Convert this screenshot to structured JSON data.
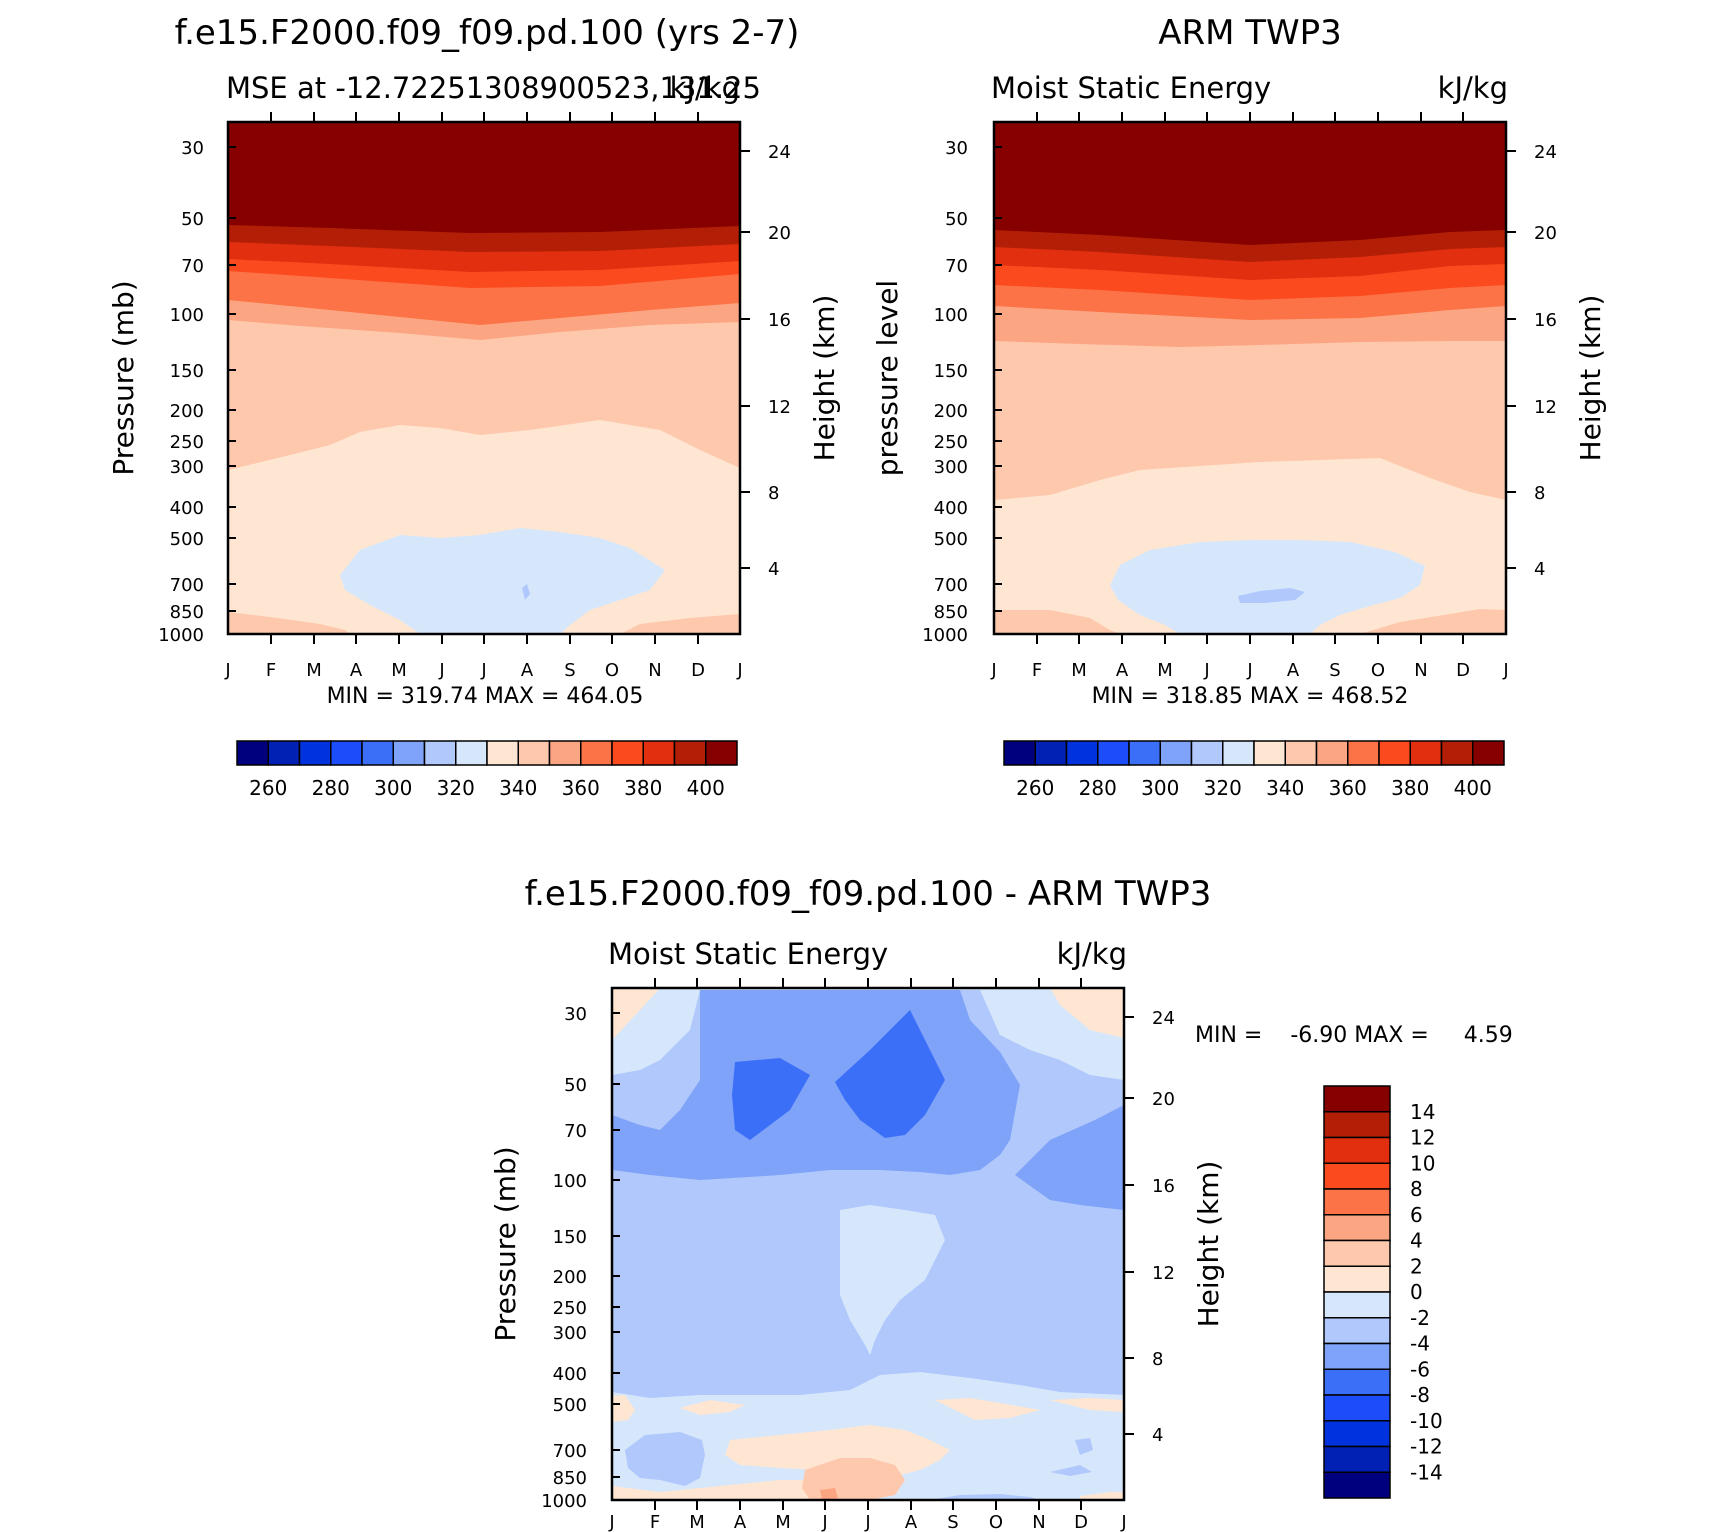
{
  "panels": [
    {
      "id": "model",
      "title": "f.e15.F2000.f09_f09.pd.100 (yrs 2-7)",
      "subtitle_left": "MSE at -12.72251308900523,131.25",
      "subtitle_right": "kJ/kg",
      "ylabel": "Pressure (mb)",
      "ylabel_right": "Height (km)",
      "minmax": "MIN = 319.74 MAX = 464.05",
      "colorbar": "bar_abs"
    },
    {
      "id": "obs",
      "title": "ARM TWP3",
      "subtitle_left": "Moist Static Energy",
      "subtitle_right": "kJ/kg",
      "ylabel": "pressure level",
      "ylabel_right": "Height (km)",
      "minmax": "MIN = 318.85 MAX = 468.52",
      "colorbar": "bar_abs"
    },
    {
      "id": "diff",
      "title": "f.e15.F2000.f09_f09.pd.100 - ARM TWP3",
      "subtitle_left": "Moist Static Energy",
      "subtitle_right": "kJ/kg",
      "ylabel": "Pressure (mb)",
      "ylabel_right": "Height (km)",
      "minmax": "MIN =    -6.90 MAX =     4.59",
      "colorbar": "bar_diff"
    }
  ],
  "chart_data": [
    {
      "type": "heatmap",
      "panel": "model",
      "title": "f.e15.F2000.f09_f09.pd.100 (yrs 2-7)",
      "x": [
        "J",
        "F",
        "M",
        "A",
        "M",
        "J",
        "J",
        "A",
        "S",
        "O",
        "N",
        "D",
        "J"
      ],
      "xlabel": "",
      "y_pressure_mb": [
        30,
        50,
        70,
        100,
        150,
        200,
        250,
        300,
        400,
        500,
        700,
        850,
        1000
      ],
      "ylabel": "Pressure (mb)",
      "y_height_km": [
        4,
        8,
        12,
        16,
        20,
        24
      ],
      "ylabel_right": "Height (km)",
      "approx_band_bottoms_mb": {
        "dark_red_top": [
          56,
          57,
          58,
          59,
          59,
          59,
          60,
          60,
          60,
          59,
          58,
          57,
          55
        ],
        "level_400": [
          62,
          63,
          64,
          65,
          66,
          67,
          67,
          68,
          68,
          67,
          66,
          64,
          62
        ],
        "level_390": [
          68,
          69,
          71,
          72,
          74,
          75,
          76,
          76,
          76,
          75,
          73,
          71,
          69
        ],
        "level_380": [
          77,
          79,
          81,
          83,
          86,
          87,
          88,
          88,
          88,
          86,
          84,
          81,
          78
        ],
        "level_360": [
          92,
          95,
          99,
          103,
          107,
          110,
          112,
          111,
          108,
          104,
          100,
          96,
          93
        ],
        "level_340": [
          310,
          290,
          270,
          240,
          220,
          230,
          240,
          220,
          210,
          220,
          240,
          280,
          320
        ]
      },
      "min_region_note": "below 330 kJ/kg between ~500 and ~1000 mb, Apr-Oct",
      "min": 319.74,
      "max": 464.05
    },
    {
      "type": "heatmap",
      "panel": "obs",
      "title": "ARM TWP3",
      "x": [
        "J",
        "F",
        "M",
        "A",
        "M",
        "J",
        "J",
        "A",
        "S",
        "O",
        "N",
        "D",
        "J"
      ],
      "y_pressure_mb": [
        30,
        50,
        70,
        100,
        150,
        200,
        250,
        300,
        400,
        500,
        700,
        850,
        1000
      ],
      "ylabel": "pressure level",
      "y_height_km": [
        4,
        8,
        12,
        16,
        20,
        24
      ],
      "ylabel_right": "Height (km)",
      "approx_band_bottoms_mb": {
        "dark_red_top": [
          54,
          56,
          57,
          58,
          59,
          60,
          61,
          62,
          62,
          61,
          59,
          56,
          54
        ],
        "level_400": [
          60,
          62,
          63,
          65,
          67,
          68,
          69,
          70,
          70,
          69,
          66,
          63,
          60
        ],
        "level_390": [
          67,
          69,
          71,
          73,
          75,
          77,
          78,
          79,
          79,
          78,
          75,
          71,
          68
        ],
        "level_380": [
          76,
          78,
          80,
          83,
          86,
          88,
          90,
          91,
          90,
          88,
          85,
          81,
          77
        ],
        "level_360": [
          120,
          121,
          122,
          123,
          124,
          124,
          125,
          124,
          123,
          122,
          121,
          120,
          120
        ],
        "level_340": [
          390,
          380,
          360,
          320,
          310,
          300,
          290,
          290,
          290,
          280,
          300,
          340,
          380
        ]
      },
      "min_region_note": "below 330 kJ/kg between ~500 and ~1000 mb, Apr-Oct; local minimum near 700-750 mb in Jul",
      "min": 318.85,
      "max": 468.52
    },
    {
      "type": "heatmap",
      "panel": "diff",
      "title": "f.e15.F2000.f09_f09.pd.100 - ARM TWP3",
      "x": [
        "J",
        "F",
        "M",
        "A",
        "M",
        "J",
        "J",
        "A",
        "S",
        "O",
        "N",
        "D",
        "J"
      ],
      "y_pressure_mb": [
        30,
        50,
        70,
        100,
        150,
        200,
        250,
        300,
        400,
        500,
        700,
        850,
        1000
      ],
      "ylabel": "Pressure (mb)",
      "y_height_km": [
        4,
        8,
        12,
        16,
        20,
        24
      ],
      "ylabel_right": "Height (km)",
      "features": [
        {
          "region": "upper levels 30-100 mb, Apr-Sep",
          "range": "-4 to -8"
        },
        {
          "region": "100-400 mb",
          "range": "-2 to -4"
        },
        {
          "region": "column Jul, 110-300 mb",
          "range": "0 to -2"
        },
        {
          "region": "500-1000 mb",
          "range": "+2 to -2"
        },
        {
          "region": "near-surface Jun-Jul",
          "range": "+2 to +4"
        }
      ],
      "min": -6.9,
      "max": 4.59
    }
  ],
  "colorbars": {
    "bar_abs": {
      "orientation": "horizontal",
      "labels": [
        "260",
        "280",
        "300",
        "320",
        "340",
        "360",
        "380",
        "400"
      ],
      "levels": [
        250,
        260,
        270,
        280,
        290,
        300,
        310,
        320,
        330,
        340,
        350,
        360,
        370,
        380,
        390,
        400
      ],
      "colors": [
        "#00007f",
        "#0021b4",
        "#0033dd",
        "#1c4df9",
        "#3c6ff8",
        "#7ea3f8",
        "#b0c8fb",
        "#d6e7fc",
        "#fee6d3",
        "#fec8ad",
        "#fca582",
        "#fc7347",
        "#fc4a1f",
        "#e12f0f",
        "#b21f06",
        "#860000"
      ]
    },
    "bar_diff": {
      "orientation": "vertical",
      "labels": [
        "14",
        "12",
        "10",
        "8",
        "6",
        "4",
        "2",
        "0",
        "-2",
        "-4",
        "-6",
        "-8",
        "-10",
        "-12",
        "-14"
      ],
      "colors": [
        "#860000",
        "#b21f06",
        "#e12f0f",
        "#fc4a1f",
        "#fc7347",
        "#fca582",
        "#fec8ad",
        "#fee6d3",
        "#d6e7fc",
        "#b0c8fb",
        "#7ea3f8",
        "#3c6ff8",
        "#1c4df9",
        "#0033dd",
        "#0021b4",
        "#00007f"
      ]
    }
  },
  "palette": {
    "dark_red": "#860000",
    "red1": "#b21f06",
    "red2": "#e12f0f",
    "red3": "#fc4a1f",
    "orange": "#fc7347",
    "salmon": "#fca582",
    "peach": "#fec8ad",
    "cream": "#fee6d3",
    "pale_blue": "#d6e7fc",
    "light_blue": "#b0c8fb",
    "mid_blue": "#7ea3f8",
    "blue": "#3c6ff8"
  }
}
